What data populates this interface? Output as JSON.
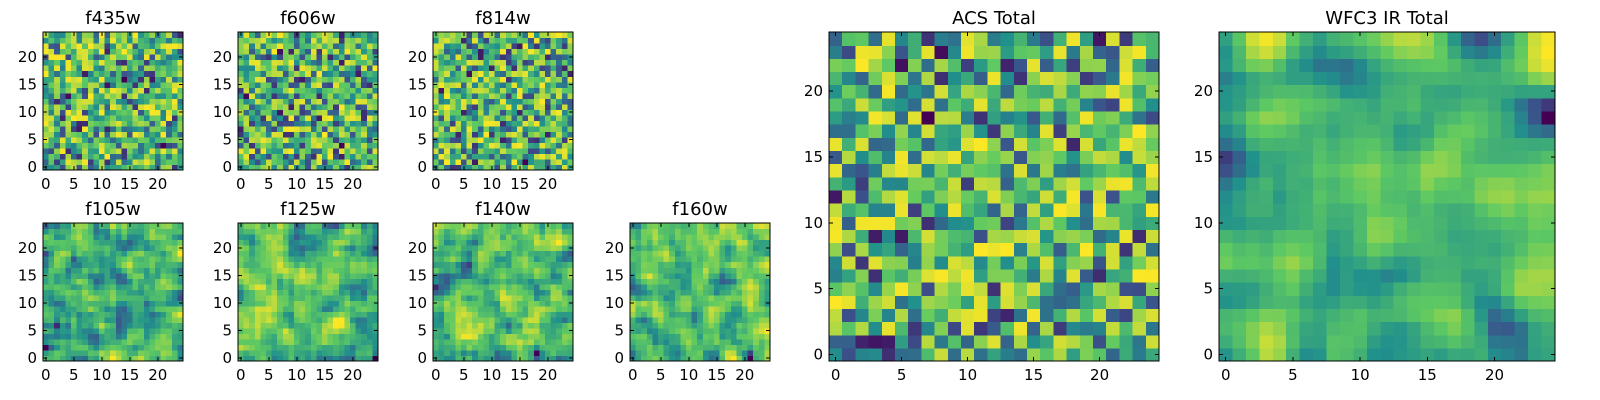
{
  "chart_data": [
    {
      "type": "heatmap",
      "title": "f435w",
      "size": 25,
      "xticks": [
        0,
        5,
        10,
        15,
        20
      ],
      "yticks": [
        0,
        5,
        10,
        15,
        20
      ],
      "xlim": [
        0,
        24
      ],
      "ylim": [
        0,
        24
      ],
      "smoothness": 0,
      "seed": 11
    },
    {
      "type": "heatmap",
      "title": "f606w",
      "size": 25,
      "xticks": [
        0,
        5,
        10,
        15,
        20
      ],
      "yticks": [
        0,
        5,
        10,
        15,
        20
      ],
      "xlim": [
        0,
        24
      ],
      "ylim": [
        0,
        24
      ],
      "smoothness": 0,
      "seed": 23
    },
    {
      "type": "heatmap",
      "title": "f814w",
      "size": 25,
      "xticks": [
        0,
        5,
        10,
        15,
        20
      ],
      "yticks": [
        0,
        5,
        10,
        15,
        20
      ],
      "xlim": [
        0,
        24
      ],
      "ylim": [
        0,
        24
      ],
      "smoothness": 0,
      "seed": 37
    },
    {
      "type": "heatmap",
      "title": "f105w",
      "size": 25,
      "xticks": [
        0,
        5,
        10,
        15,
        20
      ],
      "yticks": [
        0,
        5,
        10,
        15,
        20
      ],
      "xlim": [
        0,
        24
      ],
      "ylim": [
        0,
        24
      ],
      "smoothness": 1,
      "seed": 41
    },
    {
      "type": "heatmap",
      "title": "f125w",
      "size": 25,
      "xticks": [
        0,
        5,
        10,
        15,
        20
      ],
      "yticks": [
        0,
        5,
        10,
        15,
        20
      ],
      "xlim": [
        0,
        24
      ],
      "ylim": [
        0,
        24
      ],
      "smoothness": 1,
      "seed": 53
    },
    {
      "type": "heatmap",
      "title": "f140w",
      "size": 25,
      "xticks": [
        0,
        5,
        10,
        15,
        20
      ],
      "yticks": [
        0,
        5,
        10,
        15,
        20
      ],
      "xlim": [
        0,
        24
      ],
      "ylim": [
        0,
        24
      ],
      "smoothness": 1,
      "seed": 67
    },
    {
      "type": "heatmap",
      "title": "f160w",
      "size": 25,
      "xticks": [
        0,
        5,
        10,
        15,
        20
      ],
      "yticks": [
        0,
        5,
        10,
        15,
        20
      ],
      "xlim": [
        0,
        24
      ],
      "ylim": [
        0,
        24
      ],
      "smoothness": 1,
      "seed": 79
    },
    {
      "type": "heatmap",
      "title": "ACS Total",
      "size": 25,
      "xticks": [
        0,
        5,
        10,
        15,
        20
      ],
      "yticks": [
        0,
        5,
        10,
        15,
        20
      ],
      "xlim": [
        0,
        24
      ],
      "ylim": [
        0,
        24
      ],
      "smoothness": 0,
      "seed": 97
    },
    {
      "type": "heatmap",
      "title": "WFC3 IR Total",
      "size": 25,
      "xticks": [
        0,
        5,
        10,
        15,
        20
      ],
      "yticks": [
        0,
        5,
        10,
        15,
        20
      ],
      "xlim": [
        0,
        24
      ],
      "ylim": [
        0,
        24
      ],
      "smoothness": 2,
      "seed": 113
    }
  ],
  "colormap": [
    "#440154",
    "#3b528b",
    "#21918c",
    "#5ec962",
    "#fde725"
  ]
}
